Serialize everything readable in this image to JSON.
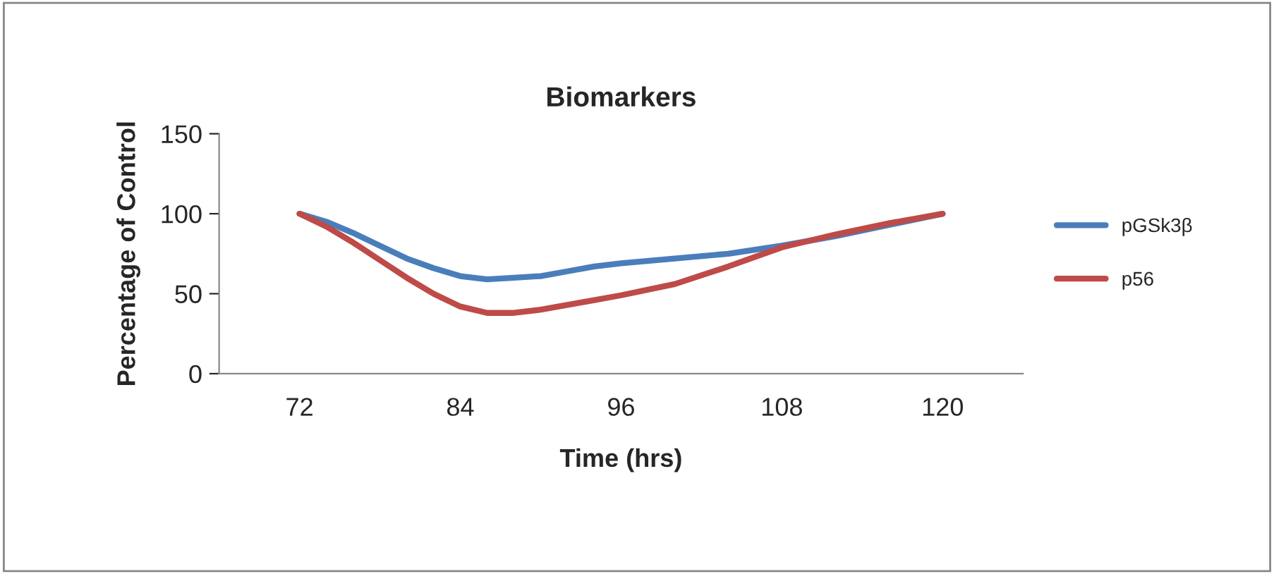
{
  "chart_data": {
    "type": "line",
    "title": "Biomarkers",
    "xlabel": "Time (hrs)",
    "ylabel": "Percentage of Control",
    "xlim": [
      66,
      126
    ],
    "xticks": [
      72,
      84,
      96,
      108,
      120
    ],
    "series": [
      {
        "name": "pGSk3β",
        "color": "#4a7ebb",
        "x": [
          72,
          74,
          76,
          78,
          80,
          82,
          84,
          86,
          88,
          90,
          92,
          94,
          96,
          100,
          104,
          108,
          112,
          116,
          120
        ],
        "values": [
          100,
          95,
          88,
          80,
          72,
          66,
          61,
          59,
          60,
          61,
          64,
          67,
          69,
          72,
          75,
          80,
          86,
          93,
          100
        ]
      },
      {
        "name": "p56",
        "color": "#be4b48",
        "x": [
          72,
          74,
          76,
          78,
          80,
          82,
          84,
          86,
          88,
          90,
          92,
          94,
          96,
          100,
          104,
          108,
          112,
          116,
          120
        ],
        "values": [
          100,
          92,
          82,
          71,
          60,
          50,
          42,
          38,
          38,
          40,
          43,
          46,
          49,
          56,
          67,
          79,
          87,
          94,
          100
        ]
      }
    ],
    "ylim": [
      0,
      150
    ],
    "yticks": [
      0,
      50,
      100,
      150
    ],
    "grid": false,
    "legend": "right",
    "marker": "none",
    "line_style": "solid"
  }
}
